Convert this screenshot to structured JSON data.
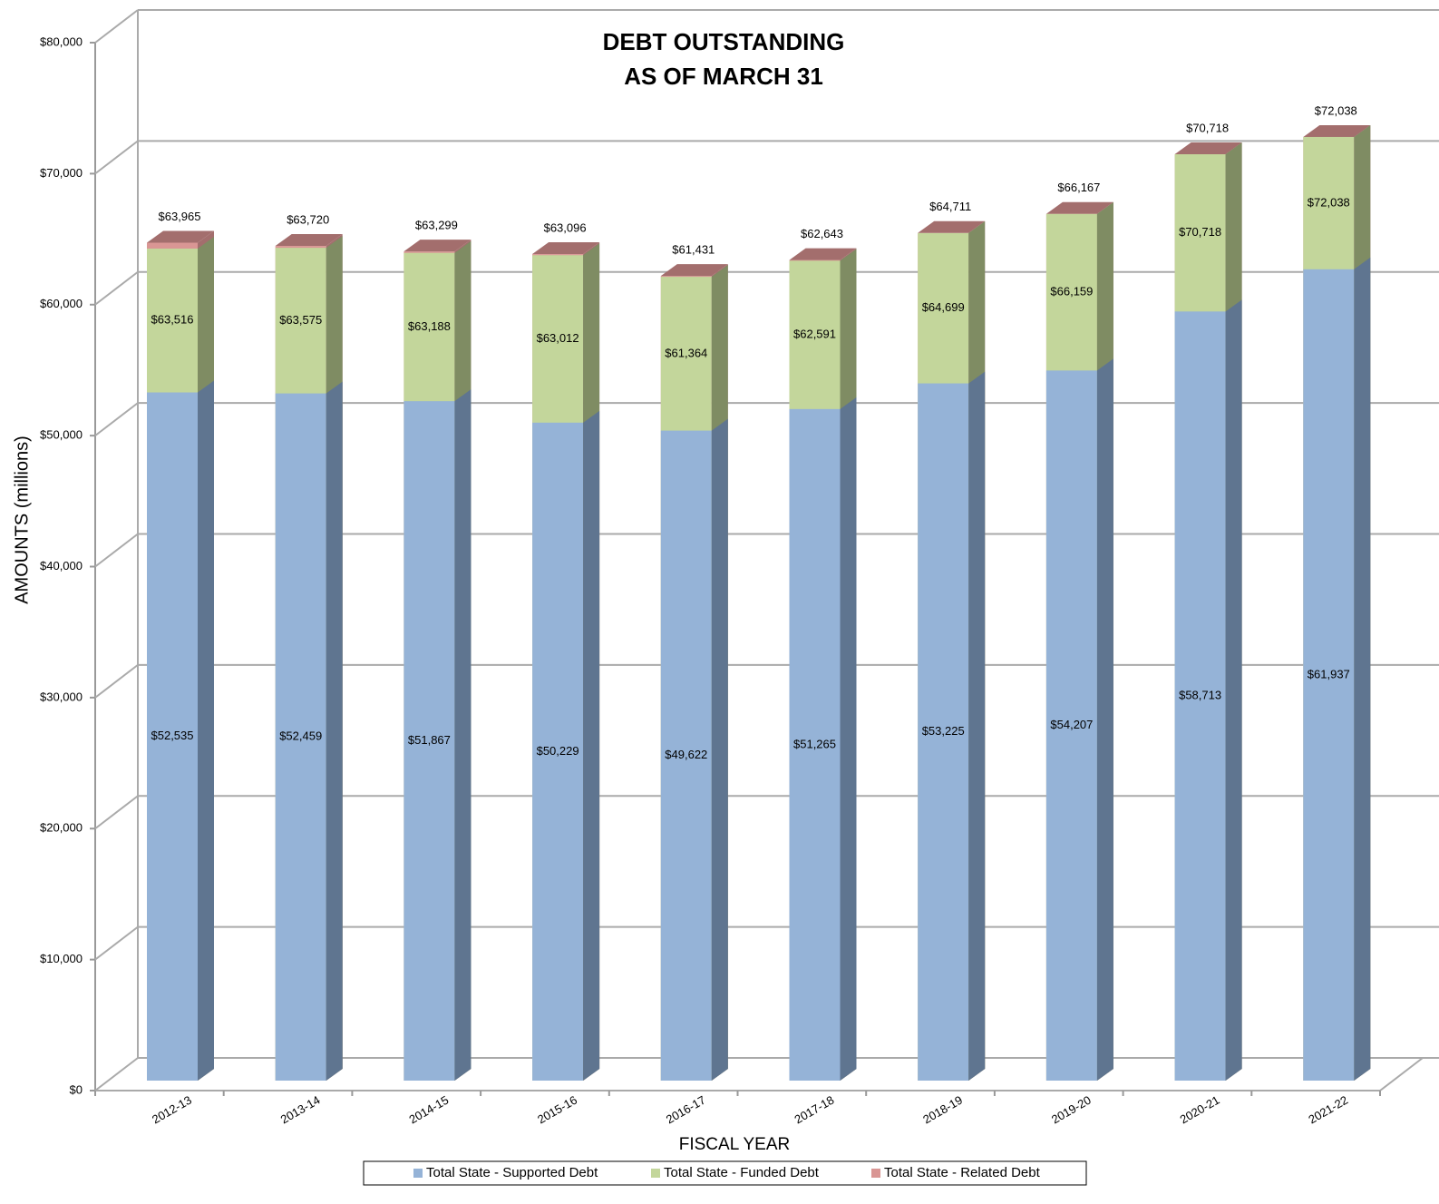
{
  "chart_data": {
    "type": "bar",
    "layout": "overlapping",
    "title": [
      "DEBT OUTSTANDING",
      "AS OF MARCH 31"
    ],
    "x_label": "FISCAL YEAR",
    "y_label": "AMOUNTS (millions)",
    "categories": [
      "2012-13",
      "2013-14",
      "2014-15",
      "2015-16",
      "2016-17",
      "2017-18",
      "2018-19",
      "2019-20",
      "2020-21",
      "2021-22"
    ],
    "series": [
      {
        "name": "Total State - Supported Debt",
        "color": "#95b3d7",
        "side_color": "#5f7590",
        "values": [
          52535,
          52459,
          51867,
          50229,
          49622,
          51265,
          53225,
          54207,
          58713,
          61937
        ],
        "value_labels": [
          "$52,535",
          "$52,459",
          "$51,867",
          "$50,229",
          "$49,622",
          "$51,265",
          "$53,225",
          "$54,207",
          "$58,713",
          "$61,937"
        ]
      },
      {
        "name": "Total State - Funded Debt",
        "color": "#c3d69b",
        "side_color": "#7f8c63",
        "values": [
          63516,
          63575,
          63188,
          63012,
          61364,
          62591,
          64699,
          66159,
          70718,
          72038
        ],
        "value_labels": [
          "$63,516",
          "$63,575",
          "$63,188",
          "$63,012",
          "$61,364",
          "$62,591",
          "$64,699",
          "$66,159",
          "$70,718",
          "$72,038"
        ]
      },
      {
        "name": "Total State - Related Debt",
        "color": "#d99694",
        "side_color": "#a36e6d",
        "values": [
          63965,
          63720,
          63299,
          63096,
          61431,
          62643,
          64711,
          66167,
          70718,
          72038
        ],
        "value_labels": [
          "$63,965",
          "$63,720",
          "$63,299",
          "$63,096",
          "$61,431",
          "$62,643",
          "$64,711",
          "$66,167",
          "$70,718",
          "$72,038"
        ]
      }
    ],
    "ylim": [
      0,
      80000
    ],
    "yticks": [
      {
        "value": 0,
        "label": "$0"
      },
      {
        "value": 10000,
        "label": "$10,000"
      },
      {
        "value": 20000,
        "label": "$20,000"
      },
      {
        "value": 30000,
        "label": "$30,000"
      },
      {
        "value": 40000,
        "label": "$40,000"
      },
      {
        "value": 50000,
        "label": "$50,000"
      },
      {
        "value": 60000,
        "label": "$60,000"
      },
      {
        "value": 70000,
        "label": "$70,000"
      },
      {
        "value": 80000,
        "label": "$80,000"
      }
    ],
    "grid": true,
    "legend": "bottom"
  }
}
